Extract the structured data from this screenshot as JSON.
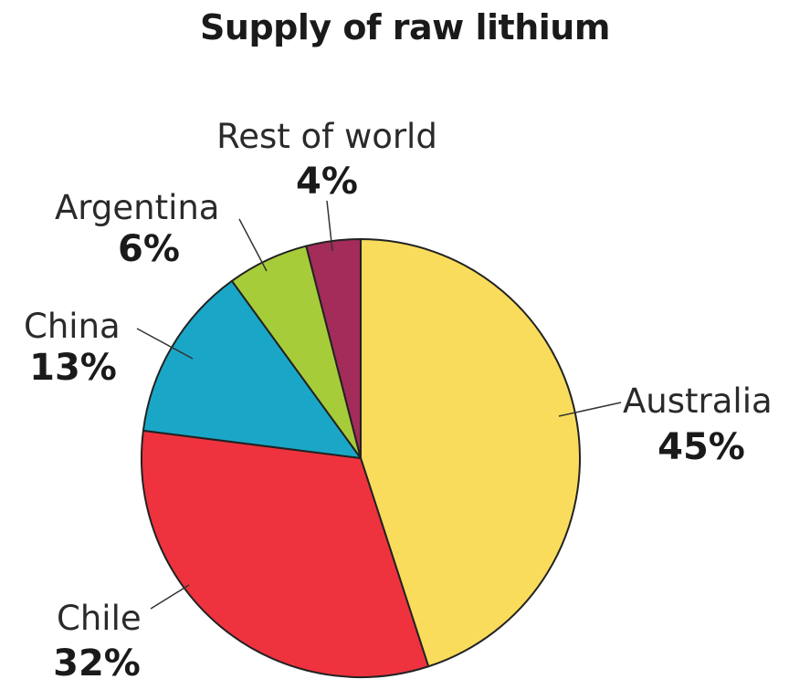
{
  "chart_data": {
    "type": "pie",
    "title": "Supply of raw lithium",
    "unit": "%",
    "slices": [
      {
        "label": "Australia",
        "value": 45,
        "display": "45%",
        "color": "#f9dc5c"
      },
      {
        "label": "Chile",
        "value": 32,
        "display": "32%",
        "color": "#ee333e"
      },
      {
        "label": "China",
        "value": 13,
        "display": "13%",
        "color": "#1aa7c7"
      },
      {
        "label": "Argentina",
        "value": 6,
        "display": "6%",
        "color": "#a7cc3a"
      },
      {
        "label": "Rest of world",
        "value": 4,
        "display": "4%",
        "color": "#a32c5a"
      }
    ],
    "start": "12 o'clock",
    "direction": "clockwise"
  }
}
